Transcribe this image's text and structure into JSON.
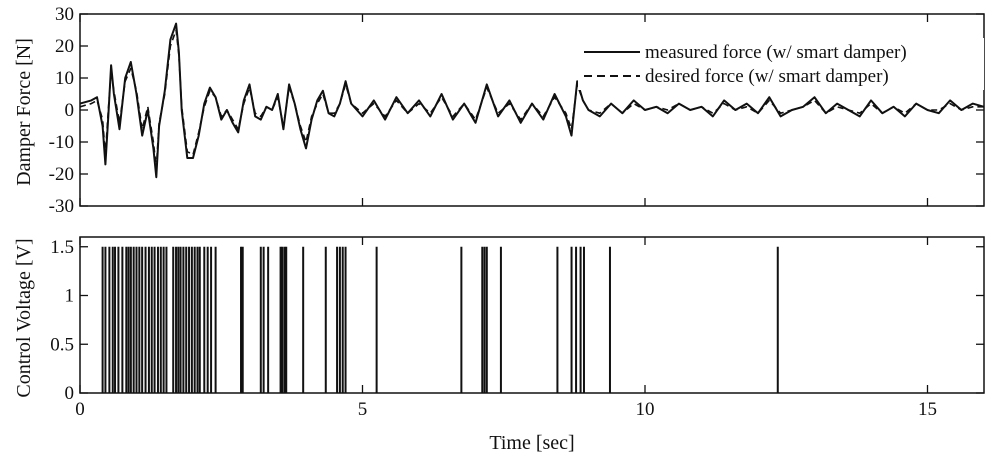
{
  "chart_data": [
    {
      "type": "line",
      "ylabel": "Damper Force [N]",
      "xlim": [
        0,
        16
      ],
      "ylim": [
        -30,
        30
      ],
      "yticks": [
        -30,
        -20,
        -10,
        0,
        10,
        20,
        30
      ],
      "xticks": [
        0,
        5,
        10,
        15
      ],
      "grid": false,
      "legend_position": "top-right",
      "series": [
        {
          "name": "measured force (w/ smart damper)",
          "style": "solid",
          "x": [
            0.0,
            0.2,
            0.3,
            0.4,
            0.45,
            0.5,
            0.55,
            0.6,
            0.7,
            0.8,
            0.9,
            1.0,
            1.1,
            1.2,
            1.3,
            1.35,
            1.4,
            1.5,
            1.6,
            1.7,
            1.75,
            1.8,
            1.9,
            2.0,
            2.1,
            2.2,
            2.3,
            2.4,
            2.5,
            2.6,
            2.7,
            2.8,
            2.9,
            3.0,
            3.1,
            3.2,
            3.3,
            3.4,
            3.5,
            3.6,
            3.7,
            3.8,
            3.9,
            4.0,
            4.1,
            4.2,
            4.3,
            4.4,
            4.5,
            4.6,
            4.7,
            4.8,
            5.0,
            5.2,
            5.4,
            5.6,
            5.8,
            6.0,
            6.2,
            6.4,
            6.6,
            6.8,
            7.0,
            7.2,
            7.4,
            7.6,
            7.8,
            8.0,
            8.2,
            8.4,
            8.6,
            8.7,
            8.8,
            8.9,
            9.0,
            9.2,
            9.4,
            9.6,
            9.8,
            10.0,
            10.2,
            10.4,
            10.6,
            10.8,
            11.0,
            11.2,
            11.4,
            11.6,
            11.8,
            12.0,
            12.2,
            12.4,
            12.6,
            12.8,
            13.0,
            13.2,
            13.4,
            13.6,
            13.8,
            14.0,
            14.2,
            14.4,
            14.6,
            14.8,
            15.0,
            15.2,
            15.4,
            15.6,
            15.8,
            16.0
          ],
          "y": [
            2,
            3,
            4,
            -5,
            -17,
            -2,
            14,
            5,
            -6,
            10,
            15,
            5,
            -8,
            0,
            -12,
            -21,
            -5,
            6,
            22,
            27,
            18,
            0,
            -15,
            -15,
            -8,
            2,
            7,
            4,
            -3,
            0,
            -4,
            -7,
            3,
            8,
            -2,
            -3,
            1,
            0,
            5,
            -6,
            8,
            2,
            -6,
            -12,
            -3,
            3,
            6,
            -1,
            -2,
            2,
            9,
            2,
            -2,
            3,
            -3,
            4,
            -1,
            3,
            -2,
            5,
            -3,
            2,
            -4,
            8,
            -2,
            3,
            -4,
            2,
            -3,
            5,
            -2,
            -8,
            9,
            3,
            0,
            -2,
            2,
            -1,
            3,
            0,
            1,
            -1,
            2,
            0,
            1,
            -2,
            3,
            0,
            2,
            -1,
            4,
            -2,
            0,
            1,
            4,
            -1,
            2,
            0,
            -2,
            3,
            -1,
            1,
            -2,
            2,
            0,
            -1,
            3,
            0,
            2,
            1
          ]
        },
        {
          "name": "desired force (w/ smart damper)",
          "style": "dashed",
          "x": [
            0.0,
            0.2,
            0.3,
            0.4,
            0.45,
            0.5,
            0.55,
            0.6,
            0.7,
            0.8,
            0.9,
            1.0,
            1.1,
            1.2,
            1.3,
            1.35,
            1.4,
            1.5,
            1.6,
            1.7,
            1.75,
            1.8,
            1.9,
            2.0,
            2.1,
            2.2,
            2.3,
            2.4,
            2.5,
            2.6,
            2.7,
            2.8,
            2.9,
            3.0,
            3.1,
            3.2,
            3.3,
            3.4,
            3.5,
            3.6,
            3.7,
            3.8,
            3.9,
            4.0,
            4.1,
            4.2,
            4.3,
            4.4,
            4.5,
            4.6,
            4.7,
            4.8,
            5.0,
            5.2,
            5.4,
            5.6,
            5.8,
            6.0,
            6.2,
            6.4,
            6.6,
            6.8,
            7.0,
            7.2,
            7.4,
            7.6,
            7.8,
            8.0,
            8.2,
            8.4,
            8.6,
            8.7,
            8.8,
            8.9,
            9.0,
            9.2,
            9.4,
            9.6,
            9.8,
            10.0,
            10.2,
            10.4,
            10.6,
            10.8,
            11.0,
            11.2,
            11.4,
            11.6,
            11.8,
            12.0,
            12.2,
            12.4,
            12.6,
            12.8,
            13.0,
            13.2,
            13.4,
            13.6,
            13.8,
            14.0,
            14.2,
            14.4,
            14.6,
            14.8,
            15.0,
            15.2,
            15.4,
            15.6,
            15.8,
            16.0
          ],
          "y": [
            1,
            2,
            3,
            -3,
            -14,
            0,
            12,
            6,
            -4,
            9,
            13,
            6,
            -6,
            1,
            -10,
            -18,
            -4,
            5,
            20,
            25,
            17,
            1,
            -13,
            -14,
            -7,
            1,
            6,
            4,
            -2,
            0,
            -3,
            -6,
            2,
            7,
            -1,
            -2,
            1,
            0,
            4,
            -5,
            7,
            2,
            -5,
            -10,
            -2,
            2,
            5,
            -1,
            -1,
            2,
            8,
            2,
            -1,
            2,
            -2,
            3,
            -1,
            2,
            -1,
            4,
            -2,
            2,
            -3,
            7,
            -1,
            2,
            -3,
            2,
            -2,
            4,
            -1,
            -6,
            8,
            3,
            0,
            -1,
            2,
            -1,
            2,
            0,
            1,
            0,
            2,
            0,
            1,
            -1,
            2,
            0,
            1,
            -1,
            3,
            -1,
            0,
            1,
            3,
            -1,
            1,
            0,
            -1,
            2,
            -1,
            1,
            -1,
            2,
            0,
            0,
            2,
            0,
            1,
            1
          ]
        }
      ]
    },
    {
      "type": "line",
      "ylabel": "Control Voltage [V]",
      "xlabel": "Time [sec]",
      "xlim": [
        0,
        16
      ],
      "ylim": [
        0,
        1.6
      ],
      "yticks": [
        0,
        0.5,
        1,
        1.5
      ],
      "ytick_labels": [
        "0",
        "0.5",
        "1",
        "1.5"
      ],
      "xticks": [
        0,
        5,
        10,
        15
      ],
      "grid": false,
      "pulse_level": 1.5,
      "pulse_times": [
        0.4,
        0.45,
        0.52,
        0.58,
        0.62,
        0.68,
        0.75,
        0.82,
        0.86,
        0.9,
        0.95,
        1.0,
        1.05,
        1.1,
        1.16,
        1.22,
        1.27,
        1.32,
        1.38,
        1.43,
        1.48,
        1.53,
        1.65,
        1.7,
        1.74,
        1.78,
        1.83,
        1.88,
        1.93,
        1.98,
        2.03,
        2.08,
        2.12,
        2.2,
        2.26,
        2.32,
        2.4,
        2.85,
        2.88,
        3.2,
        3.25,
        3.33,
        3.55,
        3.58,
        3.62,
        3.65,
        3.95,
        4.35,
        4.55,
        4.6,
        4.65,
        4.7,
        5.25,
        6.75,
        7.12,
        7.16,
        7.2,
        7.45,
        8.45,
        8.7,
        8.78,
        8.86,
        8.92,
        9.38,
        12.35
      ]
    }
  ]
}
